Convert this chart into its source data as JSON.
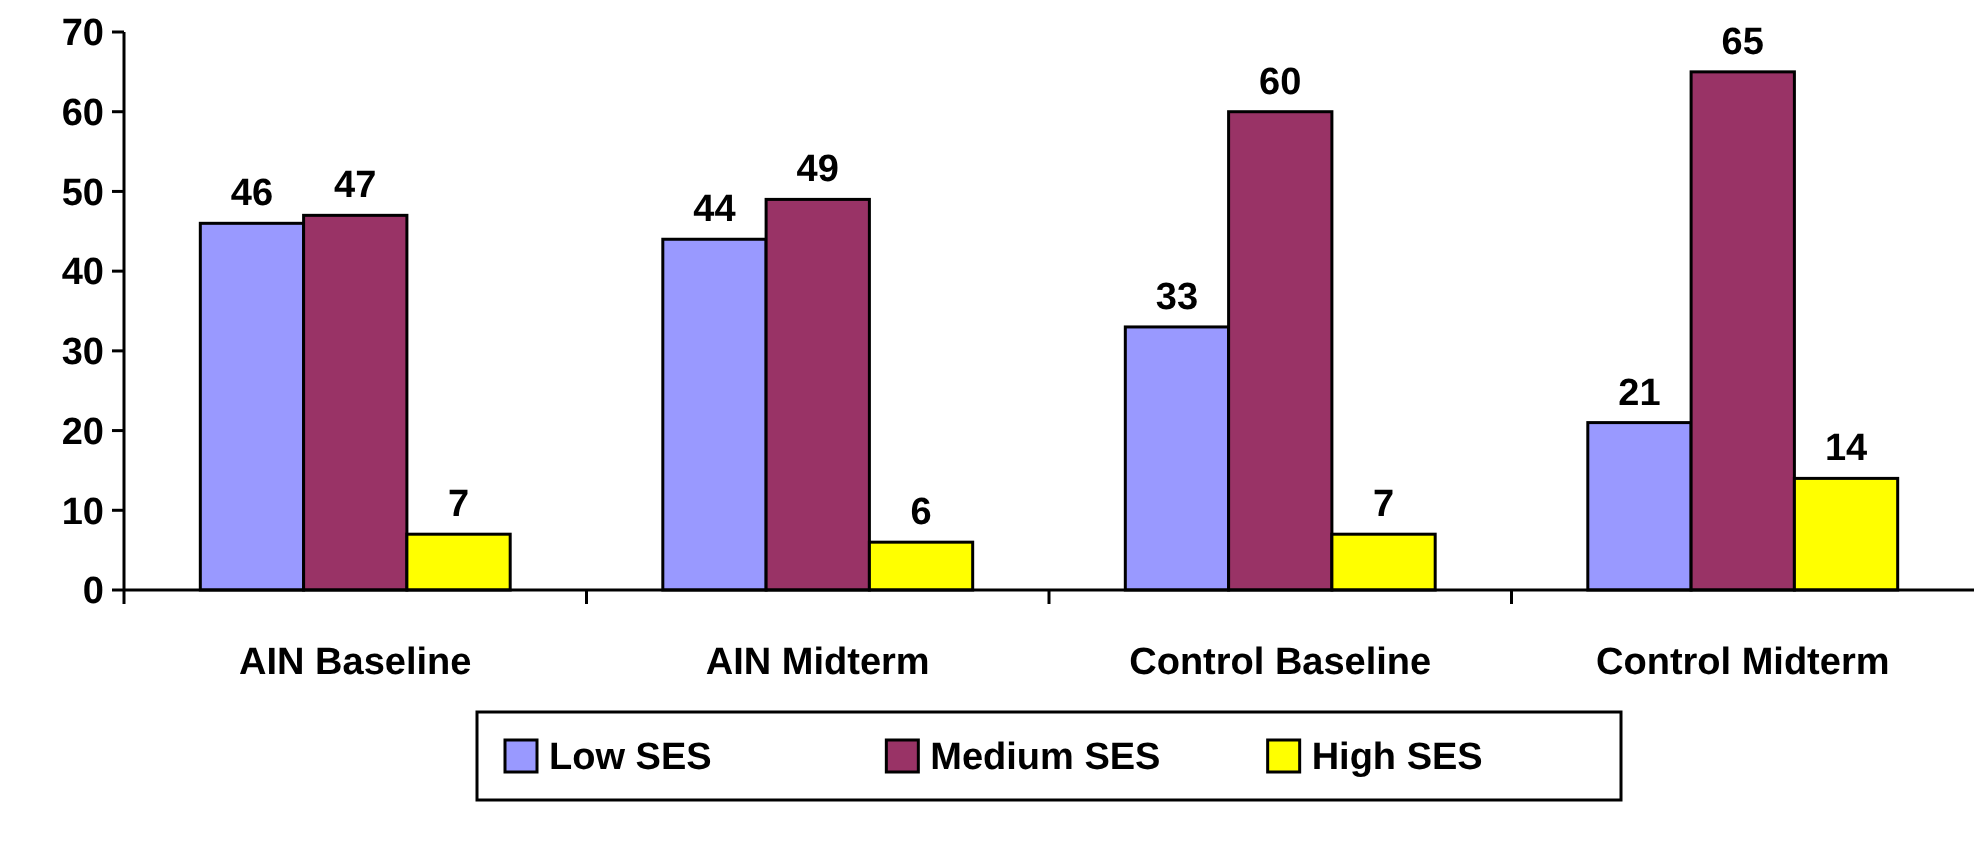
{
  "chart_data": {
    "type": "bar",
    "categories": [
      "AIN Baseline",
      "AIN Midterm",
      "Control Baseline",
      "Control Midterm"
    ],
    "series": [
      {
        "name": "Low SES",
        "color": "#9999ff",
        "values": [
          46,
          44,
          33,
          21
        ]
      },
      {
        "name": "Medium SES",
        "color": "#993366",
        "values": [
          47,
          49,
          60,
          65
        ]
      },
      {
        "name": "High SES",
        "color": "#ffff00",
        "values": [
          7,
          6,
          7,
          14
        ]
      }
    ],
    "ylim": [
      0,
      70
    ],
    "yticks": [
      0,
      10,
      20,
      30,
      40,
      50,
      60,
      70
    ],
    "data_labels": true,
    "legend": "bottom",
    "grid": false
  }
}
